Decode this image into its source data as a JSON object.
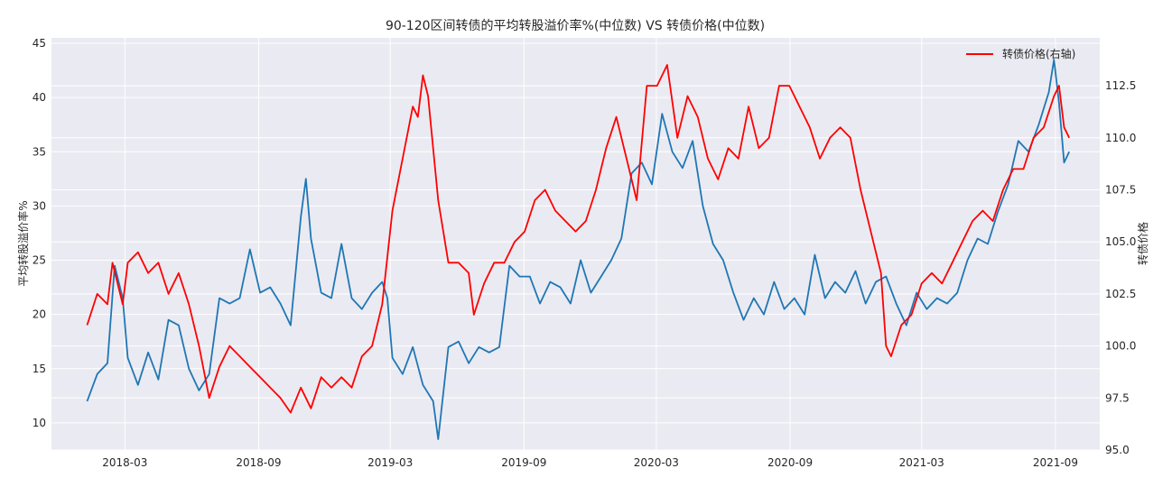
{
  "chart_data": {
    "type": "line",
    "title": "90-120区间转债的平均转股溢价率%(中位数) VS 转债价格(中位数)",
    "ylabel_left": "平均转股溢价率%",
    "ylabel_right": "转债价格",
    "xlabel": "",
    "x_ticks": [
      "2018-03",
      "2018-09",
      "2019-03",
      "2019-09",
      "2020-03",
      "2020-09",
      "2021-03",
      "2021-09"
    ],
    "y_left_ticks": [
      10,
      15,
      20,
      25,
      30,
      35,
      40,
      45
    ],
    "y_right_ticks": [
      "95.0",
      "97.5",
      "100.0",
      "102.5",
      "105.0",
      "107.5",
      "110.0",
      "112.5"
    ],
    "ylim_left": [
      7.5,
      45.5
    ],
    "ylim_right": [
      95.0,
      114.8
    ],
    "xlim": [
      "2017-11-20",
      "2021-11-01"
    ],
    "grid": true,
    "legend": {
      "position": "top-right",
      "entries": [
        "转债价格(右轴)"
      ]
    },
    "colors": {
      "premium": "#1f77b4",
      "price": "#ff0000",
      "background": "#eaeaf2",
      "grid": "#ffffff"
    },
    "series": [
      {
        "name": "",
        "axis": "left",
        "color": "#1f77b4",
        "points": [
          [
            "2018-01-08",
            12.0
          ],
          [
            "2018-01-22",
            14.5
          ],
          [
            "2018-02-05",
            15.5
          ],
          [
            "2018-02-15",
            24.5
          ],
          [
            "2018-02-26",
            21.5
          ],
          [
            "2018-03-05",
            16.0
          ],
          [
            "2018-03-19",
            13.5
          ],
          [
            "2018-04-02",
            16.5
          ],
          [
            "2018-04-16",
            14.0
          ],
          [
            "2018-04-30",
            19.5
          ],
          [
            "2018-05-14",
            19.0
          ],
          [
            "2018-05-28",
            15.0
          ],
          [
            "2018-06-11",
            13.0
          ],
          [
            "2018-06-25",
            14.5
          ],
          [
            "2018-07-09",
            21.5
          ],
          [
            "2018-07-23",
            21.0
          ],
          [
            "2018-08-06",
            21.5
          ],
          [
            "2018-08-20",
            26.0
          ],
          [
            "2018-09-03",
            22.0
          ],
          [
            "2018-09-17",
            22.5
          ],
          [
            "2018-10-01",
            21.0
          ],
          [
            "2018-10-15",
            19.0
          ],
          [
            "2018-10-29",
            29.0
          ],
          [
            "2018-11-05",
            32.5
          ],
          [
            "2018-11-12",
            27.0
          ],
          [
            "2018-11-26",
            22.0
          ],
          [
            "2018-12-10",
            21.5
          ],
          [
            "2018-12-24",
            26.5
          ],
          [
            "2019-01-07",
            21.5
          ],
          [
            "2019-01-21",
            20.5
          ],
          [
            "2019-02-04",
            22.0
          ],
          [
            "2019-02-18",
            23.0
          ],
          [
            "2019-02-25",
            21.5
          ],
          [
            "2019-03-04",
            16.0
          ],
          [
            "2019-03-18",
            14.5
          ],
          [
            "2019-04-01",
            17.0
          ],
          [
            "2019-04-15",
            13.5
          ],
          [
            "2019-04-29",
            12.0
          ],
          [
            "2019-05-06",
            8.5
          ],
          [
            "2019-05-20",
            17.0
          ],
          [
            "2019-06-03",
            17.5
          ],
          [
            "2019-06-17",
            15.5
          ],
          [
            "2019-07-01",
            17.0
          ],
          [
            "2019-07-15",
            16.5
          ],
          [
            "2019-07-29",
            17.0
          ],
          [
            "2019-08-12",
            24.5
          ],
          [
            "2019-08-26",
            23.5
          ],
          [
            "2019-09-09",
            23.5
          ],
          [
            "2019-09-23",
            21.0
          ],
          [
            "2019-10-07",
            23.0
          ],
          [
            "2019-10-21",
            22.5
          ],
          [
            "2019-11-04",
            21.0
          ],
          [
            "2019-11-18",
            25.0
          ],
          [
            "2019-12-02",
            22.0
          ],
          [
            "2019-12-16",
            23.5
          ],
          [
            "2019-12-30",
            25.0
          ],
          [
            "2020-01-13",
            27.0
          ],
          [
            "2020-01-27",
            33.0
          ],
          [
            "2020-02-10",
            34.0
          ],
          [
            "2020-02-24",
            32.0
          ],
          [
            "2020-03-09",
            38.5
          ],
          [
            "2020-03-23",
            35.0
          ],
          [
            "2020-04-06",
            33.5
          ],
          [
            "2020-04-20",
            36.0
          ],
          [
            "2020-05-04",
            30.0
          ],
          [
            "2020-05-18",
            26.5
          ],
          [
            "2020-06-01",
            25.0
          ],
          [
            "2020-06-15",
            22.0
          ],
          [
            "2020-06-29",
            19.5
          ],
          [
            "2020-07-13",
            21.5
          ],
          [
            "2020-07-27",
            20.0
          ],
          [
            "2020-08-10",
            23.0
          ],
          [
            "2020-08-24",
            20.5
          ],
          [
            "2020-09-07",
            21.5
          ],
          [
            "2020-09-21",
            20.0
          ],
          [
            "2020-10-05",
            25.5
          ],
          [
            "2020-10-19",
            21.5
          ],
          [
            "2020-11-02",
            23.0
          ],
          [
            "2020-11-16",
            22.0
          ],
          [
            "2020-11-30",
            24.0
          ],
          [
            "2020-12-14",
            21.0
          ],
          [
            "2020-12-28",
            23.0
          ],
          [
            "2021-01-11",
            23.5
          ],
          [
            "2021-01-25",
            21.0
          ],
          [
            "2021-02-08",
            19.0
          ],
          [
            "2021-02-22",
            22.0
          ],
          [
            "2021-03-08",
            20.5
          ],
          [
            "2021-03-22",
            21.5
          ],
          [
            "2021-04-05",
            21.0
          ],
          [
            "2021-04-19",
            22.0
          ],
          [
            "2021-05-03",
            25.0
          ],
          [
            "2021-05-17",
            27.0
          ],
          [
            "2021-05-31",
            26.5
          ],
          [
            "2021-06-14",
            29.5
          ],
          [
            "2021-06-28",
            32.0
          ],
          [
            "2021-07-12",
            36.0
          ],
          [
            "2021-07-26",
            35.0
          ],
          [
            "2021-08-09",
            37.5
          ],
          [
            "2021-08-23",
            40.5
          ],
          [
            "2021-08-30",
            43.5
          ],
          [
            "2021-09-06",
            39.5
          ],
          [
            "2021-09-13",
            34.0
          ],
          [
            "2021-09-20",
            35.0
          ]
        ]
      },
      {
        "name": "转债价格(右轴)",
        "axis": "right",
        "color": "#ff0000",
        "points": [
          [
            "2018-01-08",
            101.0
          ],
          [
            "2018-01-22",
            102.5
          ],
          [
            "2018-02-05",
            102.0
          ],
          [
            "2018-02-12",
            104.0
          ],
          [
            "2018-02-26",
            102.0
          ],
          [
            "2018-03-05",
            104.0
          ],
          [
            "2018-03-19",
            104.5
          ],
          [
            "2018-04-02",
            103.5
          ],
          [
            "2018-04-16",
            104.0
          ],
          [
            "2018-04-30",
            102.5
          ],
          [
            "2018-05-14",
            103.5
          ],
          [
            "2018-05-28",
            102.0
          ],
          [
            "2018-06-11",
            100.0
          ],
          [
            "2018-06-25",
            97.5
          ],
          [
            "2018-07-09",
            99.0
          ],
          [
            "2018-07-23",
            100.0
          ],
          [
            "2018-08-06",
            99.5
          ],
          [
            "2018-08-20",
            99.0
          ],
          [
            "2018-09-03",
            98.5
          ],
          [
            "2018-09-17",
            98.0
          ],
          [
            "2018-10-01",
            97.5
          ],
          [
            "2018-10-15",
            96.8
          ],
          [
            "2018-10-29",
            98.0
          ],
          [
            "2018-11-12",
            97.0
          ],
          [
            "2018-11-26",
            98.5
          ],
          [
            "2018-12-10",
            98.0
          ],
          [
            "2018-12-24",
            98.5
          ],
          [
            "2019-01-07",
            98.0
          ],
          [
            "2019-01-21",
            99.5
          ],
          [
            "2019-02-04",
            100.0
          ],
          [
            "2019-02-18",
            102.0
          ],
          [
            "2019-03-04",
            106.5
          ],
          [
            "2019-03-18",
            109.0
          ],
          [
            "2019-04-01",
            111.5
          ],
          [
            "2019-04-08",
            111.0
          ],
          [
            "2019-04-15",
            113.0
          ],
          [
            "2019-04-22",
            112.0
          ],
          [
            "2019-05-06",
            107.0
          ],
          [
            "2019-05-20",
            104.0
          ],
          [
            "2019-06-03",
            104.0
          ],
          [
            "2019-06-17",
            103.5
          ],
          [
            "2019-06-24",
            101.5
          ],
          [
            "2019-07-08",
            103.0
          ],
          [
            "2019-07-22",
            104.0
          ],
          [
            "2019-08-05",
            104.0
          ],
          [
            "2019-08-19",
            105.0
          ],
          [
            "2019-09-02",
            105.5
          ],
          [
            "2019-09-16",
            107.0
          ],
          [
            "2019-09-30",
            107.5
          ],
          [
            "2019-10-14",
            106.5
          ],
          [
            "2019-10-28",
            106.0
          ],
          [
            "2019-11-11",
            105.5
          ],
          [
            "2019-11-25",
            106.0
          ],
          [
            "2019-12-09",
            107.5
          ],
          [
            "2019-12-23",
            109.5
          ],
          [
            "2020-01-06",
            111.0
          ],
          [
            "2020-01-20",
            109.0
          ],
          [
            "2020-02-03",
            107.0
          ],
          [
            "2020-02-17",
            112.5
          ],
          [
            "2020-03-02",
            112.5
          ],
          [
            "2020-03-16",
            113.5
          ],
          [
            "2020-03-30",
            110.0
          ],
          [
            "2020-04-13",
            112.0
          ],
          [
            "2020-04-27",
            111.0
          ],
          [
            "2020-05-11",
            109.0
          ],
          [
            "2020-05-25",
            108.0
          ],
          [
            "2020-06-08",
            109.5
          ],
          [
            "2020-06-22",
            109.0
          ],
          [
            "2020-07-06",
            111.5
          ],
          [
            "2020-07-20",
            109.5
          ],
          [
            "2020-08-03",
            110.0
          ],
          [
            "2020-08-17",
            112.5
          ],
          [
            "2020-08-31",
            112.5
          ],
          [
            "2020-09-14",
            111.5
          ],
          [
            "2020-09-28",
            110.5
          ],
          [
            "2020-10-12",
            109.0
          ],
          [
            "2020-10-26",
            110.0
          ],
          [
            "2020-11-09",
            110.5
          ],
          [
            "2020-11-23",
            110.0
          ],
          [
            "2020-12-07",
            107.5
          ],
          [
            "2020-12-21",
            105.5
          ],
          [
            "2021-01-04",
            103.5
          ],
          [
            "2021-01-11",
            100.0
          ],
          [
            "2021-01-18",
            99.5
          ],
          [
            "2021-02-01",
            101.0
          ],
          [
            "2021-02-15",
            101.5
          ],
          [
            "2021-03-01",
            103.0
          ],
          [
            "2021-03-15",
            103.5
          ],
          [
            "2021-03-29",
            103.0
          ],
          [
            "2021-04-12",
            104.0
          ],
          [
            "2021-04-26",
            105.0
          ],
          [
            "2021-05-10",
            106.0
          ],
          [
            "2021-05-24",
            106.5
          ],
          [
            "2021-06-07",
            106.0
          ],
          [
            "2021-06-21",
            107.5
          ],
          [
            "2021-07-05",
            108.5
          ],
          [
            "2021-07-19",
            108.5
          ],
          [
            "2021-08-02",
            110.0
          ],
          [
            "2021-08-16",
            110.5
          ],
          [
            "2021-08-30",
            112.0
          ],
          [
            "2021-09-06",
            112.5
          ],
          [
            "2021-09-13",
            110.5
          ],
          [
            "2021-09-20",
            110.0
          ]
        ]
      }
    ]
  }
}
